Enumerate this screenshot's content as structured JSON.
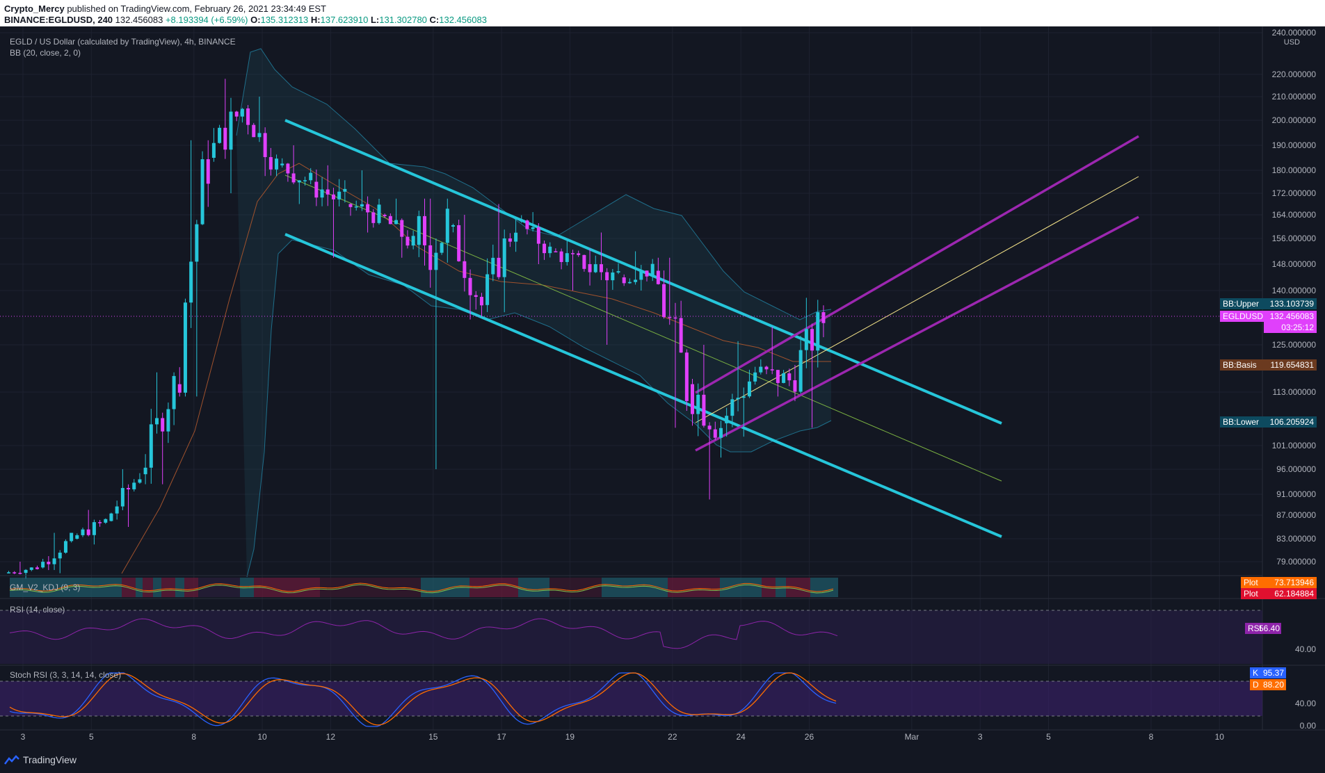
{
  "header": {
    "author": "Crypto_Mercy",
    "published": "published on TradingView.com, February 26, 2021 23:34:49 EST",
    "symbol_line": "BINANCE:EGLDUSD, 240",
    "last": "132.456083",
    "change": "+8.193394 (+6.59%)",
    "o_label": "O:",
    "o": "135.312313",
    "h_label": "H:",
    "h": "137.623910",
    "l_label": "L:",
    "l": "131.302780",
    "c_label": "C:",
    "c": "132.456083"
  },
  "legend": {
    "title": "EGLD / US Dollar (calculated by TradingView), 4h, BINANCE",
    "bb": "BB (20, close, 2, 0)",
    "kdj": "GM_V2_KDJ (9, 3)",
    "rsi": "RSI (14, close)",
    "stoch": "Stoch RSI (3, 3, 14, 14, close)"
  },
  "footer": {
    "brand": "TradingView"
  },
  "colors": {
    "bg": "#131722",
    "up": "#26c6da",
    "down": "#e040fb",
    "channel": "#26c6da",
    "pitchfork": "#9c27b0",
    "median": "#f7e58a",
    "green_line": "#7cb342",
    "bb_upper": "#1f6f8b",
    "bb_basis": "#a0522d",
    "rsi": "#8e24aa",
    "stoch_k": "#2962ff",
    "stoch_d": "#ff6d00"
  },
  "chart_data": [
    {
      "type": "candlestick",
      "title": "EGLD / US Dollar (calculated by TradingView), 4h, BINANCE",
      "ylabel": "USD",
      "y_ticks": [
        "240.000000",
        "220.000000",
        "210.000000",
        "200.000000",
        "190.000000",
        "180.000000",
        "172.000000",
        "164.000000",
        "156.000000",
        "148.000000",
        "140.000000",
        "125.000000",
        "113.000000",
        "101.000000",
        "96.000000",
        "91.000000",
        "87.000000",
        "83.000000",
        "79.000000"
      ],
      "x_ticks": [
        "3",
        "5",
        "8",
        "10",
        "12",
        "15",
        "17",
        "19",
        "22",
        "24",
        "26",
        "Mar",
        "3",
        "5",
        "8",
        "10"
      ],
      "price_labels": [
        {
          "name": "BB:Upper",
          "value": "133.103739"
        },
        {
          "name": "EGLDUSD",
          "value": "132.456083",
          "countdown": "03:25:12"
        },
        {
          "name": "BB:Basis",
          "value": "119.654831"
        },
        {
          "name": "BB:Lower",
          "value": "106.205924"
        }
      ],
      "ohlc_days": [
        {
          "day": "3",
          "o": 77,
          "h": 79,
          "l": 76,
          "c": 78
        },
        {
          "day": "4",
          "o": 78,
          "h": 84,
          "l": 77,
          "c": 83
        },
        {
          "day": "5",
          "o": 83,
          "h": 88,
          "l": 82,
          "c": 86
        },
        {
          "day": "6",
          "o": 86,
          "h": 96,
          "l": 85,
          "c": 95
        },
        {
          "day": "7",
          "o": 95,
          "h": 118,
          "l": 93,
          "c": 115
        },
        {
          "day": "8",
          "o": 115,
          "h": 192,
          "l": 112,
          "c": 185
        },
        {
          "day": "9",
          "o": 185,
          "h": 218,
          "l": 172,
          "c": 205
        },
        {
          "day": "10",
          "o": 205,
          "h": 210,
          "l": 178,
          "c": 182
        },
        {
          "day": "11",
          "o": 182,
          "h": 190,
          "l": 168,
          "c": 176
        },
        {
          "day": "12",
          "o": 176,
          "h": 182,
          "l": 150,
          "c": 168
        },
        {
          "day": "13",
          "o": 168,
          "h": 180,
          "l": 158,
          "c": 164
        },
        {
          "day": "14",
          "o": 164,
          "h": 170,
          "l": 150,
          "c": 154
        },
        {
          "day": "15",
          "o": 154,
          "h": 170,
          "l": 96,
          "c": 160
        },
        {
          "day": "16",
          "o": 160,
          "h": 164,
          "l": 132,
          "c": 136
        },
        {
          "day": "17",
          "o": 136,
          "h": 168,
          "l": 134,
          "c": 162
        },
        {
          "day": "18",
          "o": 162,
          "h": 165,
          "l": 148,
          "c": 152
        },
        {
          "day": "19",
          "o": 152,
          "h": 156,
          "l": 140,
          "c": 148
        },
        {
          "day": "20",
          "o": 148,
          "h": 158,
          "l": 125,
          "c": 144
        },
        {
          "day": "21",
          "o": 144,
          "h": 152,
          "l": 140,
          "c": 146
        },
        {
          "day": "22",
          "o": 146,
          "h": 150,
          "l": 105,
          "c": 115
        },
        {
          "day": "23",
          "o": 115,
          "h": 125,
          "l": 90,
          "c": 106
        },
        {
          "day": "24",
          "o": 106,
          "h": 126,
          "l": 103,
          "c": 118
        },
        {
          "day": "25",
          "o": 118,
          "h": 130,
          "l": 112,
          "c": 116
        },
        {
          "day": "26",
          "o": 116,
          "h": 138,
          "l": 105,
          "c": 132
        }
      ]
    },
    {
      "type": "line",
      "title": "RSI (14, close)",
      "y_ticks": [
        "40.00"
      ],
      "series": [
        {
          "name": "RSI",
          "last": "56.40"
        }
      ]
    },
    {
      "type": "line",
      "title": "Stoch RSI (3, 3, 14, 14, close)",
      "y_ticks": [
        "40.00",
        "0.00"
      ],
      "series": [
        {
          "name": "K",
          "last": "95.37"
        },
        {
          "name": "D",
          "last": "88.20"
        }
      ]
    },
    {
      "type": "line",
      "title": "GM_V2_KDJ (9, 3)",
      "series": [
        {
          "name": "Plot",
          "last": "73.713946"
        },
        {
          "name": "Plot",
          "last": "62.184884"
        }
      ]
    }
  ]
}
